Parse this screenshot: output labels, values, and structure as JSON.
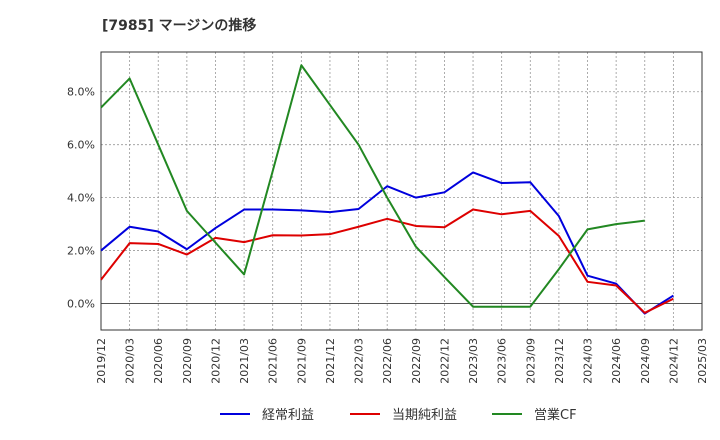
{
  "chart_data": {
    "type": "line",
    "title": "[7985]  マージンの推移",
    "xlabel": "",
    "ylabel": "",
    "x": [
      "2019/12",
      "2020/03",
      "2020/06",
      "2020/09",
      "2020/12",
      "2021/03",
      "2021/06",
      "2021/09",
      "2021/12",
      "2022/03",
      "2022/06",
      "2022/09",
      "2022/12",
      "2023/03",
      "2023/06",
      "2023/09",
      "2023/12",
      "2024/03",
      "2024/06",
      "2024/09",
      "2024/12",
      "2025/03"
    ],
    "ylim": [
      -1.0,
      9.5
    ],
    "yticks": [
      0.0,
      2.0,
      4.0,
      6.0,
      8.0
    ],
    "ytick_labels": [
      "0.0%",
      "2.0%",
      "4.0%",
      "6.0%",
      "8.0%"
    ],
    "grid": true,
    "legend_position": "bottom",
    "series": [
      {
        "name": "経常利益",
        "color": "#0000dd",
        "values": [
          2.0,
          2.9,
          2.72,
          2.05,
          2.85,
          3.55,
          3.55,
          3.52,
          3.45,
          3.57,
          4.43,
          4.0,
          4.2,
          4.95,
          4.55,
          4.58,
          3.3,
          1.05,
          0.75,
          -0.38,
          0.3,
          null
        ]
      },
      {
        "name": "当期純利益",
        "color": "#dd0000",
        "values": [
          0.9,
          2.28,
          2.25,
          1.85,
          2.48,
          2.32,
          2.58,
          2.57,
          2.62,
          2.9,
          3.2,
          2.93,
          2.88,
          3.55,
          3.37,
          3.5,
          2.55,
          0.82,
          0.68,
          -0.35,
          0.18,
          null
        ]
      },
      {
        "name": "営業CF",
        "color": "#228822",
        "values": [
          7.4,
          8.5,
          6.0,
          3.5,
          2.3,
          1.1,
          5.0,
          9.0,
          7.5,
          6.0,
          4.0,
          2.15,
          1.0,
          -0.12,
          -0.12,
          -0.12,
          1.3,
          2.8,
          3.0,
          3.13,
          null,
          null
        ]
      }
    ]
  }
}
